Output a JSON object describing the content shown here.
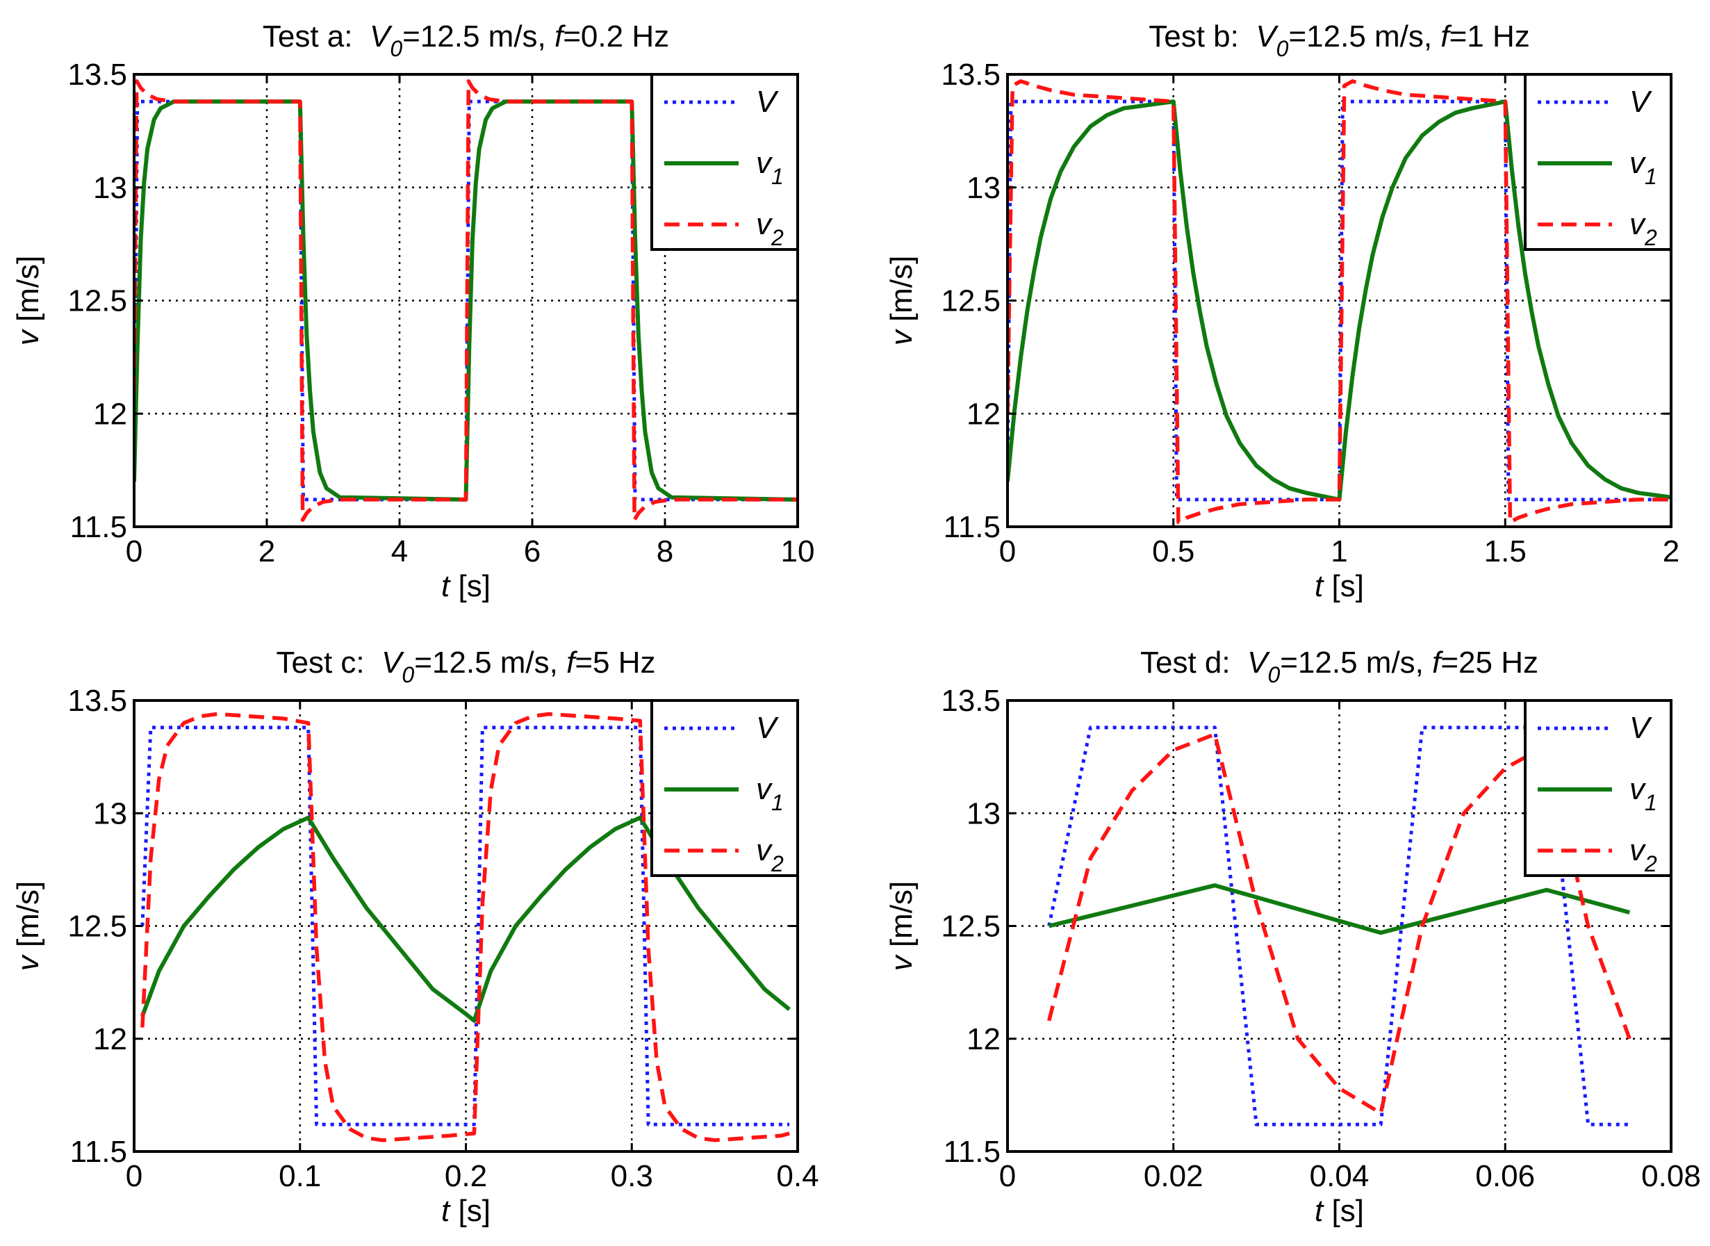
{
  "colors": {
    "V": "#1a1aff",
    "v1": "#107a10",
    "v2": "#ff1414"
  },
  "common": {
    "v0_label": "V",
    "v0_sub": "0",
    "v0_value": "=12.5 m/s, ",
    "f_label": "f",
    "ylabel": "v [m/s]",
    "xlabel": "t [s]",
    "ylabel_var": "v",
    "ylabel_unit": " [m/s]",
    "xlabel_var": "t",
    "xlabel_unit": " [s]",
    "ylim": [
      11.5,
      13.5
    ],
    "yticks": [
      "11.5",
      "12",
      "12.5",
      "13",
      "13.5"
    ],
    "legend": [
      {
        "name": "V",
        "main": "V",
        "sub": ""
      },
      {
        "name": "v1",
        "main": "v",
        "sub": "1"
      },
      {
        "name": "v2",
        "main": "v",
        "sub": "2"
      }
    ]
  },
  "chart_data": [
    {
      "type": "line",
      "title_prefix": "Test a:",
      "f_value": "=0.2 Hz",
      "xlim": [
        0,
        10
      ],
      "xticks": [
        "0",
        "2",
        "4",
        "6",
        "8",
        "10"
      ],
      "series": [
        {
          "name": "V",
          "x": [
            0,
            0.05,
            2.5,
            2.55,
            5,
            5.05,
            7.5,
            7.55,
            10
          ],
          "y": [
            11.7,
            13.38,
            13.38,
            11.62,
            11.62,
            13.38,
            13.38,
            11.62,
            11.62
          ]
        },
        {
          "name": "v1",
          "x": [
            0,
            0.05,
            0.1,
            0.15,
            0.2,
            0.3,
            0.4,
            0.6,
            2.5,
            2.55,
            2.6,
            2.65,
            2.7,
            2.8,
            2.9,
            3.1,
            5,
            5.05,
            5.1,
            5.15,
            5.2,
            5.3,
            5.4,
            5.6,
            7.5,
            7.55,
            7.6,
            7.65,
            7.7,
            7.8,
            7.9,
            8.1,
            10
          ],
          "y": [
            11.7,
            12.3,
            12.77,
            13.02,
            13.17,
            13.3,
            13.35,
            13.38,
            13.38,
            12.78,
            12.35,
            12.1,
            11.92,
            11.74,
            11.67,
            11.63,
            11.62,
            12.3,
            12.77,
            13.02,
            13.17,
            13.3,
            13.35,
            13.38,
            13.38,
            12.78,
            12.35,
            12.1,
            11.92,
            11.74,
            11.67,
            11.63,
            11.62
          ]
        },
        {
          "name": "v2",
          "x": [
            0,
            0.04,
            0.1,
            0.2,
            0.35,
            0.6,
            2.5,
            2.54,
            2.6,
            2.7,
            2.85,
            3.1,
            5,
            5.04,
            5.1,
            5.2,
            5.35,
            5.6,
            7.5,
            7.54,
            7.6,
            7.7,
            7.85,
            8.1,
            10
          ],
          "y": [
            12.1,
            13.47,
            13.44,
            13.41,
            13.39,
            13.38,
            13.38,
            11.53,
            11.56,
            11.59,
            11.61,
            11.62,
            11.62,
            13.47,
            13.44,
            13.41,
            13.39,
            13.38,
            13.38,
            11.53,
            11.56,
            11.59,
            11.61,
            11.62,
            11.62
          ]
        }
      ]
    },
    {
      "type": "line",
      "title_prefix": "Test b:",
      "f_value": "=1 Hz",
      "xlim": [
        0,
        2
      ],
      "xticks": [
        "0",
        "0.5",
        "1",
        "1.5",
        "2"
      ],
      "series": [
        {
          "name": "V",
          "x": [
            0,
            0.01,
            0.5,
            0.51,
            1,
            1.01,
            1.5,
            1.51,
            2
          ],
          "y": [
            11.7,
            13.38,
            13.38,
            11.62,
            11.62,
            13.38,
            13.38,
            11.62,
            11.62
          ]
        },
        {
          "name": "v1",
          "x": [
            0,
            0.02,
            0.04,
            0.06,
            0.08,
            0.1,
            0.13,
            0.16,
            0.2,
            0.25,
            0.3,
            0.35,
            0.4,
            0.5,
            0.52,
            0.54,
            0.56,
            0.58,
            0.6,
            0.63,
            0.66,
            0.7,
            0.75,
            0.8,
            0.85,
            0.9,
            1.0,
            1.02,
            1.04,
            1.06,
            1.08,
            1.1,
            1.13,
            1.16,
            1.2,
            1.25,
            1.3,
            1.35,
            1.4,
            1.5,
            1.52,
            1.54,
            1.56,
            1.58,
            1.6,
            1.63,
            1.66,
            1.7,
            1.75,
            1.8,
            1.85,
            1.9,
            2.0
          ],
          "y": [
            11.7,
            12.0,
            12.25,
            12.46,
            12.63,
            12.78,
            12.95,
            13.07,
            13.18,
            13.27,
            13.32,
            13.35,
            13.36,
            13.38,
            13.08,
            12.83,
            12.62,
            12.45,
            12.3,
            12.13,
            11.99,
            11.87,
            11.77,
            11.71,
            11.67,
            11.65,
            11.62,
            11.92,
            12.17,
            12.38,
            12.55,
            12.7,
            12.87,
            13.0,
            13.13,
            13.23,
            13.29,
            13.33,
            13.35,
            13.38,
            13.08,
            12.83,
            12.62,
            12.45,
            12.3,
            12.13,
            11.99,
            11.87,
            11.77,
            11.71,
            11.67,
            11.65,
            11.63
          ]
        },
        {
          "name": "v2",
          "x": [
            0,
            0.015,
            0.04,
            0.08,
            0.13,
            0.2,
            0.3,
            0.4,
            0.5,
            0.515,
            0.54,
            0.58,
            0.63,
            0.7,
            0.8,
            0.9,
            1.0,
            1.015,
            1.04,
            1.08,
            1.13,
            1.2,
            1.3,
            1.4,
            1.5,
            1.515,
            1.54,
            1.58,
            1.63,
            1.7,
            1.8,
            1.9,
            2.0
          ],
          "y": [
            12.0,
            13.45,
            13.47,
            13.45,
            13.43,
            13.41,
            13.4,
            13.39,
            13.38,
            11.52,
            11.54,
            11.56,
            11.58,
            11.6,
            11.61,
            11.62,
            11.62,
            13.45,
            13.47,
            13.45,
            13.43,
            13.41,
            13.4,
            13.39,
            13.38,
            11.52,
            11.54,
            11.56,
            11.58,
            11.6,
            11.61,
            11.62,
            11.62
          ]
        }
      ]
    },
    {
      "type": "line",
      "title_prefix": "Test c:",
      "f_value": "=5 Hz",
      "xlim": [
        0,
        0.4
      ],
      "xticks": [
        "0",
        "0.1",
        "0.2",
        "0.3",
        "0.4"
      ],
      "series": [
        {
          "name": "V",
          "x": [
            0.005,
            0.01,
            0.105,
            0.11,
            0.205,
            0.21,
            0.305,
            0.31,
            0.395
          ],
          "y": [
            12.5,
            13.38,
            13.38,
            11.62,
            11.62,
            13.38,
            13.38,
            11.62,
            11.62
          ]
        },
        {
          "name": "v1",
          "x": [
            0.005,
            0.015,
            0.03,
            0.045,
            0.06,
            0.075,
            0.09,
            0.105,
            0.12,
            0.14,
            0.16,
            0.18,
            0.2,
            0.205,
            0.215,
            0.23,
            0.245,
            0.26,
            0.275,
            0.29,
            0.305,
            0.32,
            0.34,
            0.36,
            0.38,
            0.395
          ],
          "y": [
            12.1,
            12.3,
            12.5,
            12.63,
            12.75,
            12.85,
            12.93,
            12.98,
            12.8,
            12.58,
            12.4,
            12.22,
            12.11,
            12.08,
            12.3,
            12.5,
            12.63,
            12.75,
            12.85,
            12.93,
            12.98,
            12.8,
            12.58,
            12.4,
            12.22,
            12.13
          ]
        },
        {
          "name": "v2",
          "x": [
            0.005,
            0.01,
            0.015,
            0.02,
            0.03,
            0.04,
            0.05,
            0.07,
            0.09,
            0.105,
            0.11,
            0.115,
            0.12,
            0.13,
            0.14,
            0.15,
            0.17,
            0.19,
            0.205,
            0.21,
            0.215,
            0.22,
            0.23,
            0.24,
            0.25,
            0.27,
            0.29,
            0.305,
            0.31,
            0.315,
            0.32,
            0.33,
            0.34,
            0.35,
            0.37,
            0.39,
            0.395
          ],
          "y": [
            12.05,
            12.8,
            13.15,
            13.3,
            13.4,
            13.43,
            13.44,
            13.43,
            13.42,
            13.4,
            12.4,
            11.9,
            11.7,
            11.6,
            11.56,
            11.55,
            11.56,
            11.57,
            11.58,
            12.6,
            13.1,
            13.3,
            13.4,
            13.43,
            13.44,
            13.43,
            13.42,
            13.41,
            12.4,
            11.9,
            11.7,
            11.6,
            11.56,
            11.55,
            11.56,
            11.57,
            11.58
          ]
        }
      ]
    },
    {
      "type": "line",
      "title_prefix": "Test d:",
      "f_value": "=25 Hz",
      "xlim": [
        0,
        0.08
      ],
      "xticks": [
        "0",
        "0.02",
        "0.04",
        "0.06",
        "0.08"
      ],
      "series": [
        {
          "name": "V",
          "x": [
            0.005,
            0.01,
            0.025,
            0.03,
            0.045,
            0.05,
            0.065,
            0.07,
            0.075
          ],
          "y": [
            12.5,
            13.38,
            13.38,
            11.62,
            11.62,
            13.38,
            13.38,
            11.62,
            11.62
          ]
        },
        {
          "name": "v1",
          "x": [
            0.005,
            0.025,
            0.045,
            0.065,
            0.075
          ],
          "y": [
            12.5,
            12.68,
            12.47,
            12.66,
            12.56
          ]
        },
        {
          "name": "v2",
          "x": [
            0.005,
            0.01,
            0.015,
            0.02,
            0.025,
            0.03,
            0.035,
            0.04,
            0.045,
            0.05,
            0.055,
            0.06,
            0.065,
            0.07,
            0.075
          ],
          "y": [
            12.08,
            12.8,
            13.1,
            13.28,
            13.35,
            12.6,
            12.0,
            11.78,
            11.67,
            12.5,
            13.0,
            13.2,
            13.3,
            12.5,
            12.0
          ]
        }
      ]
    }
  ]
}
